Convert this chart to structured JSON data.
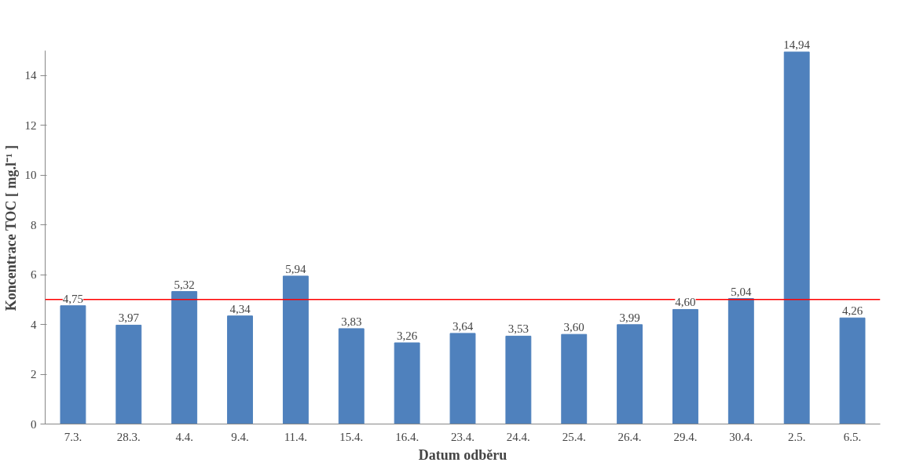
{
  "chart_data": {
    "type": "bar",
    "xlabel": "Datum odběru",
    "ylabel": "Koncentrace TOC [ mg.l⁻¹ ]",
    "categories": [
      "7.3.",
      "28.3.",
      "4.4.",
      "9.4.",
      "11.4.",
      "15.4.",
      "16.4.",
      "23.4.",
      "24.4.",
      "25.4.",
      "26.4.",
      "29.4.",
      "30.4.",
      "2.5.",
      "6.5."
    ],
    "values": [
      4.75,
      3.97,
      5.32,
      4.34,
      5.94,
      3.83,
      3.26,
      3.64,
      3.53,
      3.6,
      3.99,
      4.6,
      5.04,
      14.94,
      4.26
    ],
    "value_labels": [
      "4,75",
      "3,97",
      "5,32",
      "4,34",
      "5,94",
      "3,83",
      "3,26",
      "3,64",
      "3,53",
      "3,60",
      "3,99",
      "4,60",
      "5,04",
      "14,94",
      "4,26"
    ],
    "color": "#4f81bd",
    "ylim": [
      0,
      15
    ],
    "yticks": [
      0,
      2,
      4,
      6,
      8,
      10,
      12,
      14
    ],
    "ref_lines": [
      {
        "axis": "y",
        "value": 5,
        "color": "#ff0000"
      }
    ],
    "grid": false
  }
}
